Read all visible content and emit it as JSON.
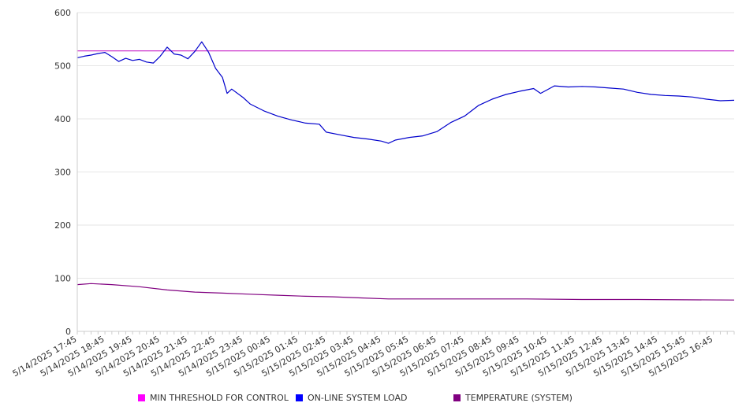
{
  "chart_data": {
    "type": "line",
    "title": "",
    "xlabel": "",
    "ylabel": "",
    "ylim": [
      0,
      600
    ],
    "yticks": [
      0,
      100,
      200,
      300,
      400,
      500,
      600
    ],
    "grid": true,
    "legend_position": "bottom",
    "x_tick_labels": [
      "5/14/2025 17:45",
      "5/14/2025 18:45",
      "5/14/2025 19:45",
      "5/14/2025 20:45",
      "5/14/2025 21:45",
      "5/14/2025 22:45",
      "5/14/2025 23:45",
      "5/15/2025 00:45",
      "5/15/2025 01:45",
      "5/15/2025 02:45",
      "5/15/2025 03:45",
      "5/15/2025 04:45",
      "5/15/2025 05:45",
      "5/15/2025 06:45",
      "5/15/2025 07:45",
      "5/15/2025 08:45",
      "5/15/2025 09:45",
      "5/15/2025 10:45",
      "5/15/2025 11:45",
      "5/15/2025 12:45",
      "5/15/2025 13:45",
      "5/15/2025 14:45",
      "5/15/2025 15:45",
      "5/15/2025 16:45"
    ],
    "x_start": "5/14/2025 17:45",
    "x_end": "5/15/2025 17:30",
    "series": [
      {
        "name": "MIN THRESHOLD FOR CONTROL",
        "color": "#cc33cc",
        "points": [
          [
            "5/14/2025 17:45",
            528
          ],
          [
            "5/15/2025 17:30",
            528
          ]
        ]
      },
      {
        "name": "ON-LINE SYSTEM LOAD",
        "color": "#0000cc",
        "points": [
          [
            "5/14/2025 17:45",
            515
          ],
          [
            "5/14/2025 18:00",
            518
          ],
          [
            "5/14/2025 18:15",
            520
          ],
          [
            "5/14/2025 18:30",
            523
          ],
          [
            "5/14/2025 18:45",
            525
          ],
          [
            "5/14/2025 19:00",
            517
          ],
          [
            "5/14/2025 19:15",
            508
          ],
          [
            "5/14/2025 19:30",
            514
          ],
          [
            "5/14/2025 19:45",
            510
          ],
          [
            "5/14/2025 20:00",
            512
          ],
          [
            "5/14/2025 20:15",
            507
          ],
          [
            "5/14/2025 20:30",
            505
          ],
          [
            "5/14/2025 20:45",
            518
          ],
          [
            "5/14/2025 21:00",
            535
          ],
          [
            "5/14/2025 21:15",
            522
          ],
          [
            "5/14/2025 21:30",
            520
          ],
          [
            "5/14/2025 21:45",
            513
          ],
          [
            "5/14/2025 22:00",
            527
          ],
          [
            "5/14/2025 22:15",
            545
          ],
          [
            "5/14/2025 22:30",
            525
          ],
          [
            "5/14/2025 22:45",
            495
          ],
          [
            "5/14/2025 23:00",
            478
          ],
          [
            "5/14/2025 23:10",
            448
          ],
          [
            "5/14/2025 23:20",
            456
          ],
          [
            "5/14/2025 23:45",
            440
          ],
          [
            "5/15/2025 00:00",
            428
          ],
          [
            "5/15/2025 00:30",
            415
          ],
          [
            "5/15/2025 01:00",
            405
          ],
          [
            "5/15/2025 01:30",
            398
          ],
          [
            "5/15/2025 02:00",
            392
          ],
          [
            "5/15/2025 02:30",
            390
          ],
          [
            "5/15/2025 02:45",
            375
          ],
          [
            "5/15/2025 03:15",
            370
          ],
          [
            "5/15/2025 03:45",
            365
          ],
          [
            "5/15/2025 04:15",
            362
          ],
          [
            "5/15/2025 04:45",
            358
          ],
          [
            "5/15/2025 05:00",
            354
          ],
          [
            "5/15/2025 05:15",
            360
          ],
          [
            "5/15/2025 05:45",
            365
          ],
          [
            "5/15/2025 06:15",
            368
          ],
          [
            "5/15/2025 06:45",
            376
          ],
          [
            "5/15/2025 07:15",
            393
          ],
          [
            "5/15/2025 07:45",
            405
          ],
          [
            "5/15/2025 08:15",
            425
          ],
          [
            "5/15/2025 08:45",
            437
          ],
          [
            "5/15/2025 09:15",
            446
          ],
          [
            "5/15/2025 09:45",
            452
          ],
          [
            "5/15/2025 10:15",
            457
          ],
          [
            "5/15/2025 10:30",
            448
          ],
          [
            "5/15/2025 10:45",
            455
          ],
          [
            "5/15/2025 11:00",
            462
          ],
          [
            "5/15/2025 11:30",
            460
          ],
          [
            "5/15/2025 12:00",
            461
          ],
          [
            "5/15/2025 12:30",
            460
          ],
          [
            "5/15/2025 13:00",
            458
          ],
          [
            "5/15/2025 13:30",
            456
          ],
          [
            "5/15/2025 14:00",
            450
          ],
          [
            "5/15/2025 14:30",
            446
          ],
          [
            "5/15/2025 15:00",
            444
          ],
          [
            "5/15/2025 15:30",
            443
          ],
          [
            "5/15/2025 16:00",
            441
          ],
          [
            "5/15/2025 16:30",
            437
          ],
          [
            "5/15/2025 17:00",
            434
          ],
          [
            "5/15/2025 17:30",
            435
          ]
        ]
      },
      {
        "name": "TEMPERATURE (SYSTEM)",
        "color": "#800080",
        "points": [
          [
            "5/14/2025 17:45",
            88
          ],
          [
            "5/14/2025 18:15",
            90
          ],
          [
            "5/14/2025 19:00",
            88
          ],
          [
            "5/14/2025 20:00",
            84
          ],
          [
            "5/14/2025 21:00",
            78
          ],
          [
            "5/14/2025 22:00",
            74
          ],
          [
            "5/14/2025 23:00",
            72
          ],
          [
            "5/15/2025 00:00",
            70
          ],
          [
            "5/15/2025 01:00",
            68
          ],
          [
            "5/15/2025 02:00",
            66
          ],
          [
            "5/15/2025 03:00",
            65
          ],
          [
            "5/15/2025 04:00",
            63
          ],
          [
            "5/15/2025 05:00",
            61
          ],
          [
            "5/15/2025 06:00",
            61
          ],
          [
            "5/15/2025 08:00",
            61
          ],
          [
            "5/15/2025 10:00",
            61
          ],
          [
            "5/15/2025 12:00",
            60
          ],
          [
            "5/15/2025 14:00",
            60
          ],
          [
            "5/15/2025 17:30",
            59
          ]
        ]
      }
    ]
  },
  "colors": {
    "grid": "#e6e6e6",
    "axis": "#cccccc",
    "text": "#333333",
    "legend_swatch_1": "#ff00ff",
    "legend_swatch_2": "#0000ff",
    "legend_swatch_3": "#800080"
  },
  "legend": {
    "items": [
      {
        "label": "MIN THRESHOLD FOR CONTROL",
        "color": "#ff00ff"
      },
      {
        "label": "ON-LINE SYSTEM LOAD",
        "color": "#0000ff"
      },
      {
        "label": "TEMPERATURE (SYSTEM)",
        "color": "#800080"
      }
    ]
  }
}
